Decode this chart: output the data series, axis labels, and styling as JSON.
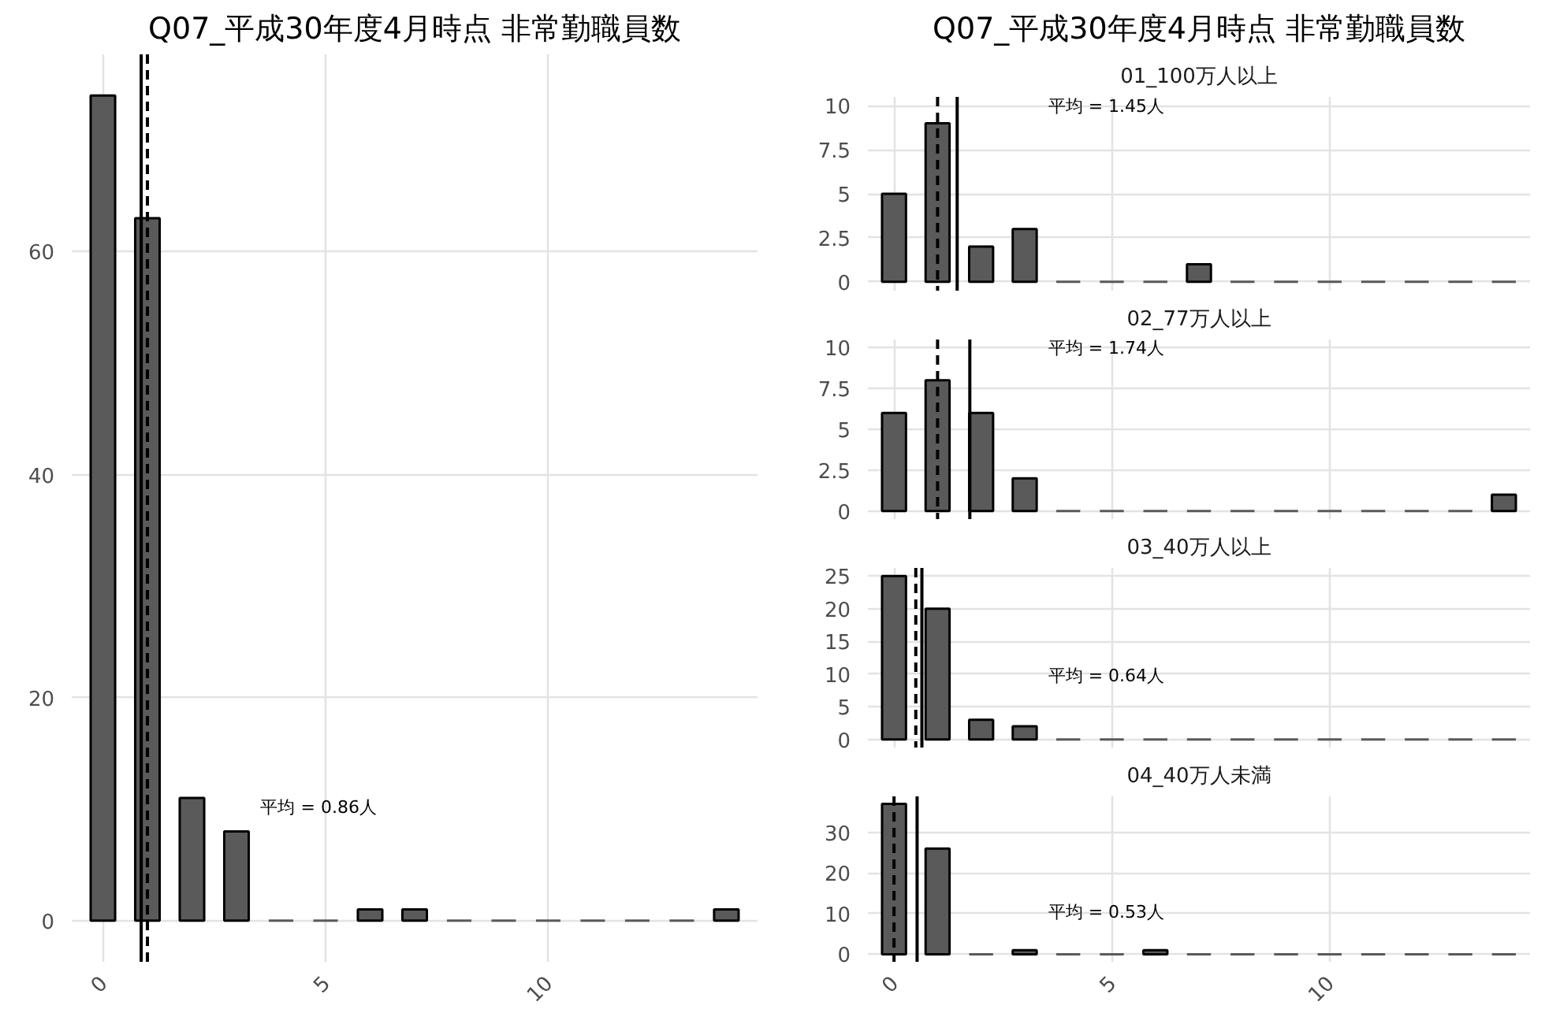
{
  "chart_data": [
    {
      "type": "bar",
      "title": "Q07_平成30年度4月時点 非常勤職員数",
      "x": [
        0,
        1,
        2,
        3,
        4,
        5,
        6,
        7,
        8,
        9,
        10,
        11,
        12,
        13,
        14
      ],
      "values": [
        74,
        63,
        11,
        8,
        0,
        0,
        1,
        1,
        0,
        0,
        0,
        0,
        0,
        0,
        1
      ],
      "color": "#5a5a5a",
      "xlim": [
        -0.7,
        14.7
      ],
      "xticks": [
        0,
        5,
        10
      ],
      "ylim": [
        -3.7,
        77.7
      ],
      "yticks": [
        0,
        20,
        40,
        60
      ],
      "grid": true,
      "ref_lines": [
        {
          "axis": "x",
          "value": 0.86,
          "line_style": "solid"
        },
        {
          "axis": "x",
          "value": 1,
          "line_style": "dashed"
        }
      ],
      "annotations": [
        "平均 = 0.86人"
      ]
    },
    {
      "type": "bar",
      "title": "Q07_平成30年度4月時点 非常勤職員数",
      "subtitle": "01_100万人以上",
      "x": [
        0,
        1,
        2,
        3,
        4,
        5,
        6,
        7,
        8,
        9,
        10,
        11,
        12,
        13,
        14
      ],
      "values": [
        5,
        9,
        2,
        3,
        0,
        0,
        0,
        1,
        0,
        0,
        0,
        0,
        0,
        0,
        0
      ],
      "color": "#5a5a5a",
      "xlim": [
        -0.6,
        14.6
      ],
      "xticks": [
        0,
        5,
        10
      ],
      "ylim": [
        -0.5,
        10.5
      ],
      "yticks": [
        0,
        2.5,
        5,
        7.5,
        10
      ],
      "grid": true,
      "tick_labels": "y",
      "ref_lines": [
        {
          "axis": "x",
          "value": 1.45,
          "line_style": "solid"
        },
        {
          "axis": "x",
          "value": 1,
          "line_style": "dashed"
        }
      ],
      "annotations": [
        "平均 = 1.45人"
      ]
    },
    {
      "type": "bar",
      "subtitle": "02_77万人以上",
      "x": [
        0,
        1,
        2,
        3,
        4,
        5,
        6,
        7,
        8,
        9,
        10,
        11,
        12,
        13,
        14
      ],
      "values": [
        6,
        8,
        6,
        2,
        0,
        0,
        0,
        0,
        0,
        0,
        0,
        0,
        0,
        0,
        1
      ],
      "color": "#5a5a5a",
      "xlim": [
        -0.6,
        14.6
      ],
      "xticks": [
        0,
        5,
        10
      ],
      "ylim": [
        -0.5,
        10.5
      ],
      "yticks": [
        0,
        2.5,
        5,
        7.5,
        10
      ],
      "grid": true,
      "tick_labels": "y",
      "ref_lines": [
        {
          "axis": "x",
          "value": 1.74,
          "line_style": "solid"
        },
        {
          "axis": "x",
          "value": 1,
          "line_style": "dashed"
        }
      ],
      "annotations": [
        "平均 = 1.74人"
      ]
    },
    {
      "type": "bar",
      "subtitle": "03_40万人以上",
      "x": [
        0,
        1,
        2,
        3,
        4,
        5,
        6,
        7,
        8,
        9,
        10,
        11,
        12,
        13,
        14
      ],
      "values": [
        25,
        20,
        3,
        2,
        0,
        0,
        0,
        0,
        0,
        0,
        0,
        0,
        0,
        0,
        0
      ],
      "color": "#5a5a5a",
      "xlim": [
        -0.6,
        14.6
      ],
      "xticks": [
        0,
        5,
        10
      ],
      "ylim": [
        -1.25,
        26.25
      ],
      "yticks": [
        0,
        5,
        10,
        15,
        20,
        25
      ],
      "grid": true,
      "tick_labels": "y",
      "ref_lines": [
        {
          "axis": "x",
          "value": 0.64,
          "line_style": "solid"
        },
        {
          "axis": "x",
          "value": 0.5,
          "line_style": "dashed"
        }
      ],
      "annotations": [
        "平均 = 0.64人"
      ]
    },
    {
      "type": "bar",
      "subtitle": "04_40万人未満",
      "x": [
        0,
        1,
        2,
        3,
        4,
        5,
        6,
        7,
        8,
        9,
        10,
        11,
        12,
        13,
        14
      ],
      "values": [
        37,
        26,
        0,
        1,
        0,
        0,
        1,
        0,
        0,
        0,
        0,
        0,
        0,
        0,
        0
      ],
      "color": "#5a5a5a",
      "xlim": [
        -0.6,
        14.6
      ],
      "xticks": [
        0,
        5,
        10
      ],
      "ylim": [
        -1.85,
        38.85
      ],
      "yticks": [
        0,
        10,
        20,
        30
      ],
      "grid": true,
      "ref_lines": [
        {
          "axis": "x",
          "value": 0.53,
          "line_style": "solid"
        },
        {
          "axis": "x",
          "value": 0,
          "line_style": "dashed"
        }
      ],
      "annotations": [
        "平均 = 0.53人"
      ]
    }
  ]
}
